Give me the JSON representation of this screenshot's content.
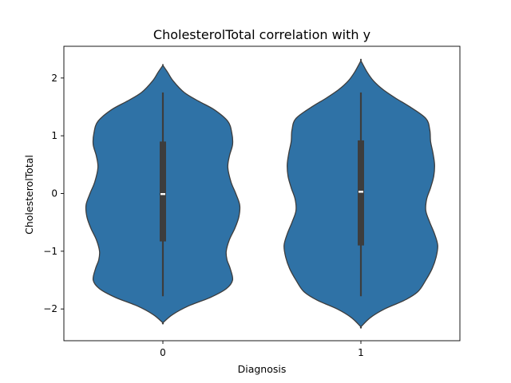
{
  "chart_data": {
    "type": "violin",
    "title": "CholesterolTotal correlation with y",
    "xlabel": "Diagnosis",
    "ylabel": "CholesterolTotal",
    "categories": [
      "0",
      "1"
    ],
    "ylim": [
      -2.55,
      2.55
    ],
    "yticks": [
      -2,
      -1,
      0,
      1,
      2
    ],
    "ytick_labels": [
      "−2",
      "−1",
      "0",
      "1",
      "2"
    ],
    "color": "#2f72a6",
    "violins": [
      {
        "category": "0",
        "ymin": -2.24,
        "ymax": 2.22,
        "whisker_low": -1.78,
        "whisker_high": 1.75,
        "q1": -0.83,
        "q3": 0.9,
        "median": -0.01,
        "profile": [
          [
            -2.24,
            0.0
          ],
          [
            -2.1,
            0.12
          ],
          [
            -1.95,
            0.32
          ],
          [
            -1.8,
            0.6
          ],
          [
            -1.65,
            0.8
          ],
          [
            -1.5,
            0.88
          ],
          [
            -1.3,
            0.85
          ],
          [
            -1.15,
            0.81
          ],
          [
            -1.0,
            0.8
          ],
          [
            -0.8,
            0.84
          ],
          [
            -0.6,
            0.91
          ],
          [
            -0.4,
            0.96
          ],
          [
            -0.2,
            0.97
          ],
          [
            0.0,
            0.92
          ],
          [
            0.2,
            0.86
          ],
          [
            0.45,
            0.82
          ],
          [
            0.65,
            0.84
          ],
          [
            0.85,
            0.88
          ],
          [
            1.05,
            0.87
          ],
          [
            1.25,
            0.82
          ],
          [
            1.45,
            0.65
          ],
          [
            1.6,
            0.45
          ],
          [
            1.75,
            0.27
          ],
          [
            1.95,
            0.13
          ],
          [
            2.1,
            0.06
          ],
          [
            2.22,
            0.0
          ]
        ]
      },
      {
        "category": "1",
        "ymin": -2.31,
        "ymax": 2.3,
        "whisker_low": -1.78,
        "whisker_high": 1.75,
        "q1": -0.9,
        "q3": 0.92,
        "median": 0.03,
        "profile": [
          [
            -2.31,
            0.0
          ],
          [
            -2.15,
            0.12
          ],
          [
            -2.0,
            0.3
          ],
          [
            -1.85,
            0.55
          ],
          [
            -1.7,
            0.72
          ],
          [
            -1.5,
            0.82
          ],
          [
            -1.3,
            0.9
          ],
          [
            -1.1,
            0.95
          ],
          [
            -0.9,
            0.97
          ],
          [
            -0.7,
            0.93
          ],
          [
            -0.5,
            0.87
          ],
          [
            -0.3,
            0.82
          ],
          [
            -0.1,
            0.83
          ],
          [
            0.1,
            0.88
          ],
          [
            0.3,
            0.92
          ],
          [
            0.5,
            0.93
          ],
          [
            0.7,
            0.91
          ],
          [
            0.9,
            0.88
          ],
          [
            1.1,
            0.87
          ],
          [
            1.3,
            0.82
          ],
          [
            1.5,
            0.62
          ],
          [
            1.65,
            0.44
          ],
          [
            1.8,
            0.28
          ],
          [
            1.95,
            0.16
          ],
          [
            2.1,
            0.08
          ],
          [
            2.3,
            0.0
          ]
        ]
      }
    ]
  }
}
